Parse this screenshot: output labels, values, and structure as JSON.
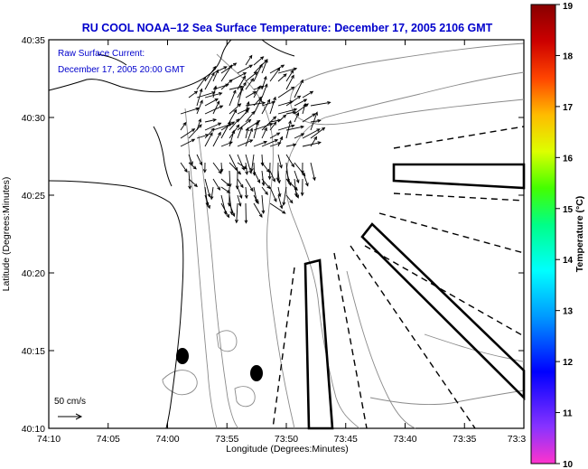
{
  "title": "RU COOL   NOAA–12  Sea Surface Temperature:  December 17, 2005 2106 GMT",
  "inset_label_1": "Raw Surface Current:",
  "inset_label_2": "December 17, 2005 20:00 GMT",
  "scale_label": "50 cm/s",
  "xlabel": "Longitude (Degrees:Minutes)",
  "ylabel": "Latitude (Degrees:Minutes)",
  "colorbar_label": "Temperature (°C)",
  "x_ticks": [
    "74:10",
    "74:05",
    "74:00",
    "73:55",
    "73:50",
    "73:45",
    "73:40",
    "73:35",
    "73:3"
  ],
  "y_ticks": [
    "40:35",
    "40:30",
    "40:25",
    "40:20",
    "40:15",
    "40:10"
  ],
  "colorbar_ticks": [
    "19",
    "18",
    "17",
    "16",
    "15",
    "14",
    "13",
    "12",
    "11",
    "10"
  ],
  "colors": {
    "title": "#0000cc",
    "frame": "#000000",
    "coast": "#000000",
    "isobath": "#888888",
    "colorbar": [
      "#ff33cc",
      "#8833ff",
      "#0000ff",
      "#0099ff",
      "#00ffff",
      "#00ff88",
      "#44ff00",
      "#ddff00",
      "#ffbb00",
      "#ff4400",
      "#cc0000",
      "#880000"
    ]
  },
  "chart_data": {
    "type": "map",
    "x_range_deg": [
      -74.1667,
      -73.5
    ],
    "y_range_deg": [
      40.1667,
      40.5833
    ],
    "colorbar_range_c": [
      10,
      19
    ],
    "markers": [
      "dot",
      "dot"
    ]
  }
}
